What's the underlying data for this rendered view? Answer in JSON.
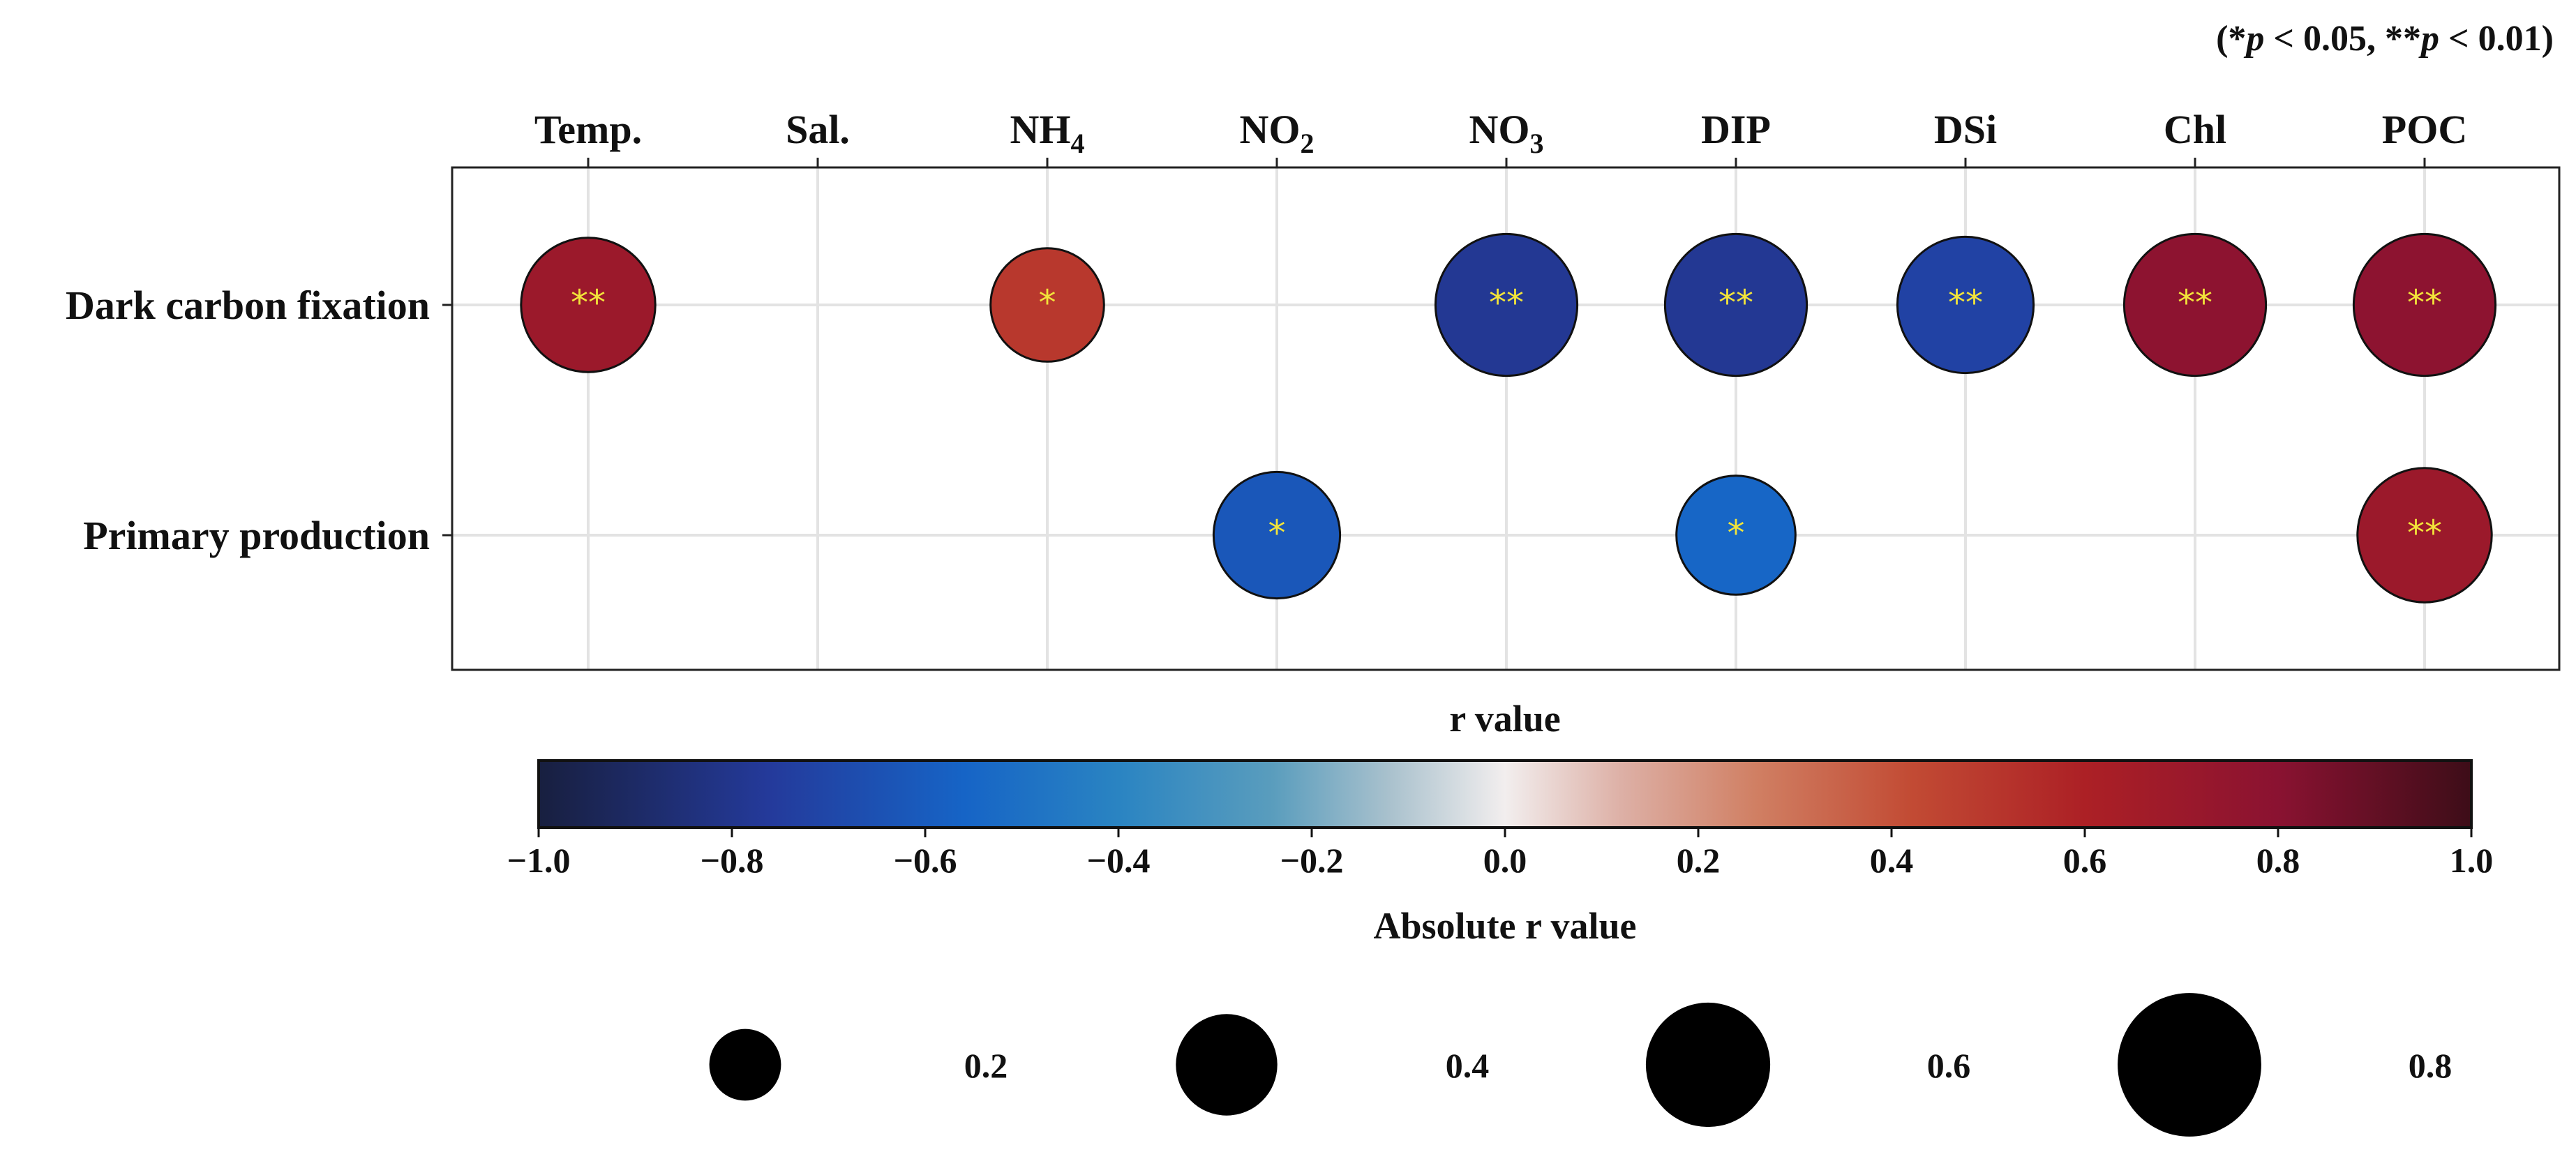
{
  "chart_data": {
    "type": "bubble-correlation",
    "significance_note": {
      "open": "(",
      "star1": "*",
      "p1": "p",
      "thr1": " < 0.05, ",
      "star2": "**",
      "p2": "p",
      "thr2": " < 0.01)"
    },
    "columns": [
      {
        "label": "Temp.",
        "sub": ""
      },
      {
        "label": "Sal.",
        "sub": ""
      },
      {
        "label": "NH",
        "sub": "4"
      },
      {
        "label": "NO",
        "sub": "2"
      },
      {
        "label": "NO",
        "sub": "3"
      },
      {
        "label": "DIP",
        "sub": ""
      },
      {
        "label": "DSi",
        "sub": ""
      },
      {
        "label": "Chl",
        "sub": ""
      },
      {
        "label": "POC",
        "sub": ""
      }
    ],
    "rows": [
      "Dark carbon fixation",
      "Primary production"
    ],
    "points": [
      {
        "row": 0,
        "col": 0,
        "r": 0.7,
        "sig": "**"
      },
      {
        "row": 0,
        "col": 2,
        "r": 0.5,
        "sig": "*"
      },
      {
        "row": 0,
        "col": 4,
        "r": -0.78,
        "sig": "**"
      },
      {
        "row": 0,
        "col": 5,
        "r": -0.78,
        "sig": "**"
      },
      {
        "row": 0,
        "col": 6,
        "r": -0.72,
        "sig": "**"
      },
      {
        "row": 0,
        "col": 7,
        "r": 0.78,
        "sig": "**"
      },
      {
        "row": 0,
        "col": 8,
        "r": 0.78,
        "sig": "**"
      },
      {
        "row": 1,
        "col": 3,
        "r": -0.62,
        "sig": "*"
      },
      {
        "row": 1,
        "col": 5,
        "r": -0.55,
        "sig": "*"
      },
      {
        "row": 1,
        "col": 8,
        "r": 0.7,
        "sig": "**"
      }
    ],
    "colorbar": {
      "title": "r value",
      "range": [
        -1.0,
        1.0
      ],
      "ticks": [
        "−1.0",
        "−0.8",
        "−0.6",
        "−0.4",
        "−0.2",
        "0.0",
        "0.2",
        "0.4",
        "0.6",
        "0.8",
        "1.0"
      ]
    },
    "size_legend": {
      "title": "Absolute r value",
      "values": [
        0.2,
        0.4,
        0.6,
        0.8
      ],
      "labels": [
        "0.2",
        "0.4",
        "0.6",
        "0.8"
      ]
    }
  }
}
